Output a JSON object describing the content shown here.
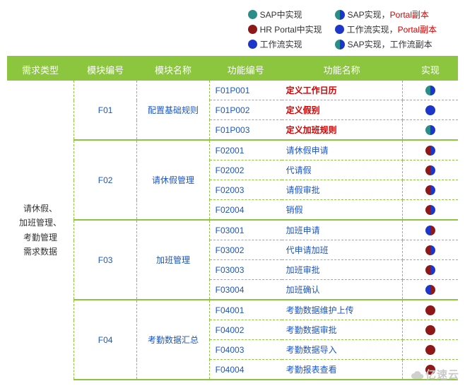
{
  "colors": {
    "sap": "#2b8d88",
    "hrportal": "#8e1717",
    "workflow": "#1b36c9",
    "portal_txt": "#d40000",
    "header_bg": "#8cc63f"
  },
  "legend": [
    {
      "kind": "solid",
      "color": "sap",
      "label": "SAP中实现"
    },
    {
      "kind": "half",
      "left": "sap",
      "right": "workflow",
      "label": "SAP实现，",
      "extra": "Portal副本"
    },
    {
      "kind": "solid",
      "color": "hrportal",
      "label": "HR Portal中实现"
    },
    {
      "kind": "solid",
      "color": "workflow",
      "label": "工作流实现，",
      "extra": "Portal副本"
    },
    {
      "kind": "solid",
      "color": "workflow",
      "label": "工作流实现"
    },
    {
      "kind": "half",
      "left": "sap",
      "right": "workflow",
      "label": "SAP实现，工作流副本"
    }
  ],
  "headers": {
    "type": "需求类型",
    "modno": "模块编号",
    "modname": "模块名称",
    "fno": "功能编号",
    "fname": "功能名称",
    "impl": "实现"
  },
  "type_label": "请休假、\n加班管理、\n考勤管理\n需求数据",
  "modules": [
    {
      "no": "F01",
      "name": "配置基础规则",
      "rows": [
        {
          "fno": "F01P001",
          "fname": "定义工作日历",
          "fcls": "red",
          "impl": [
            {
              "kind": "half",
              "left": "sap",
              "right": "workflow"
            }
          ]
        },
        {
          "fno": "F01P002",
          "fname": "定义假别",
          "fcls": "red",
          "impl": [
            {
              "kind": "solid",
              "color": "workflow"
            }
          ]
        },
        {
          "fno": "F01P003",
          "fname": "定义加班规则",
          "fcls": "red",
          "impl": [
            {
              "kind": "half",
              "left": "sap",
              "right": "workflow"
            }
          ]
        }
      ]
    },
    {
      "no": "F02",
      "name": "请休假管理",
      "rows": [
        {
          "fno": "F02001",
          "fname": "请休假申请",
          "fcls": "blue",
          "impl": [
            {
              "kind": "half",
              "left": "hrportal",
              "right": "workflow"
            }
          ]
        },
        {
          "fno": "F02002",
          "fname": "代请假",
          "fcls": "blue",
          "impl": [
            {
              "kind": "half",
              "left": "hrportal",
              "right": "workflow"
            }
          ]
        },
        {
          "fno": "F02003",
          "fname": "请假审批",
          "fcls": "blue",
          "impl": [
            {
              "kind": "half",
              "left": "hrportal",
              "right": "workflow"
            }
          ]
        },
        {
          "fno": "F02004",
          "fname": "销假",
          "fcls": "blue",
          "impl": [
            {
              "kind": "half",
              "left": "hrportal",
              "right": "workflow"
            }
          ]
        }
      ]
    },
    {
      "no": "F03",
      "name": "加班管理",
      "rows": [
        {
          "fno": "F03001",
          "fname": "加班申请",
          "fcls": "blue",
          "impl": [
            {
              "kind": "half",
              "left": "workflow",
              "right": "hrportal"
            }
          ]
        },
        {
          "fno": "F03002",
          "fname": "代申请加班",
          "fcls": "blue",
          "impl": [
            {
              "kind": "half",
              "left": "hrportal",
              "right": "workflow"
            }
          ]
        },
        {
          "fno": "F03003",
          "fname": "加班审批",
          "fcls": "blue",
          "impl": [
            {
              "kind": "half",
              "left": "hrportal",
              "right": "workflow"
            }
          ]
        },
        {
          "fno": "F03004",
          "fname": "加班确认",
          "fcls": "blue",
          "impl": [
            {
              "kind": "half",
              "left": "workflow",
              "right": "hrportal"
            }
          ]
        }
      ]
    },
    {
      "no": "F04",
      "name": "考勤数据汇总",
      "rows": [
        {
          "fno": "F04001",
          "fname": "考勤数据维护上传",
          "fcls": "blue",
          "impl": [
            {
              "kind": "solid",
              "color": "hrportal"
            }
          ]
        },
        {
          "fno": "F04002",
          "fname": "考勤数据审批",
          "fcls": "blue",
          "impl": [
            {
              "kind": "solid",
              "color": "hrportal"
            }
          ]
        },
        {
          "fno": "F04003",
          "fname": "考勤数据导入",
          "fcls": "blue",
          "impl": [
            {
              "kind": "solid",
              "color": "hrportal"
            }
          ]
        },
        {
          "fno": "F04004",
          "fname": "考勤报表查看",
          "fcls": "blue",
          "impl": [
            {
              "kind": "solid",
              "color": "hrportal"
            }
          ]
        }
      ]
    }
  ],
  "watermark": "亿速云"
}
